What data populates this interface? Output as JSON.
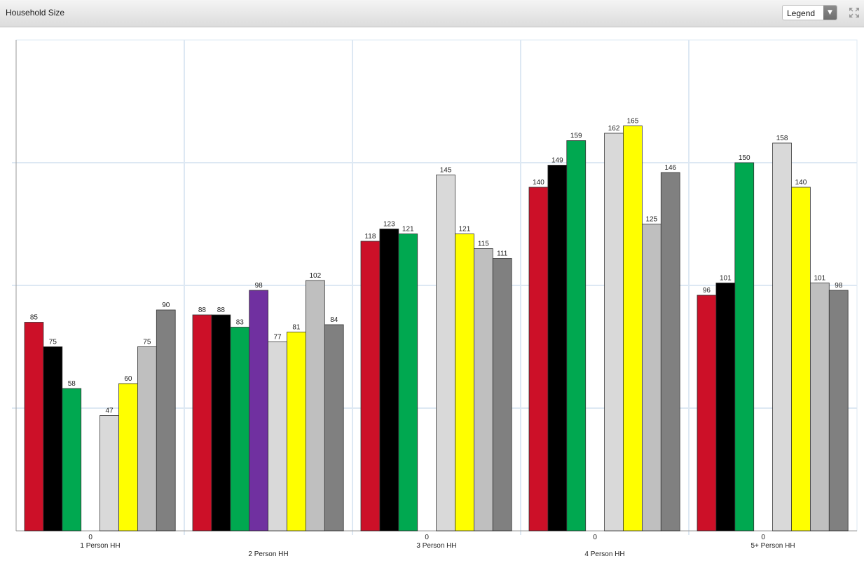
{
  "header": {
    "title": "Household Size",
    "legend_select_value": "Legend"
  },
  "icons": {
    "dropdown": "chevron-down-icon",
    "expand": "expand-icon"
  },
  "chart_data": {
    "type": "bar",
    "title": "Household Size",
    "categories": [
      "1 Person HH",
      "2 Person HH",
      "3 Person HH",
      "4 Person HH",
      "5+ Person HH"
    ],
    "missing_label": "0",
    "ylim": [
      0,
      200
    ],
    "grid": true,
    "series": [
      {
        "color": "#cc1028",
        "values": [
          85,
          88,
          118,
          140,
          96
        ]
      },
      {
        "color": "#000000",
        "values": [
          75,
          88,
          123,
          149,
          101
        ]
      },
      {
        "color": "#00a850",
        "values": [
          58,
          83,
          121,
          159,
          150
        ]
      },
      {
        "color": "#7030a0",
        "values": [
          0,
          98,
          0,
          0,
          0
        ]
      },
      {
        "color": "#d9d9d9",
        "values": [
          47,
          77,
          145,
          162,
          158
        ]
      },
      {
        "color": "#ffff00",
        "values": [
          60,
          81,
          121,
          165,
          140
        ]
      },
      {
        "color": "#bfbfbf",
        "values": [
          75,
          102,
          115,
          125,
          101
        ]
      },
      {
        "color": "#808080",
        "values": [
          90,
          84,
          111,
          146,
          98
        ]
      }
    ]
  }
}
